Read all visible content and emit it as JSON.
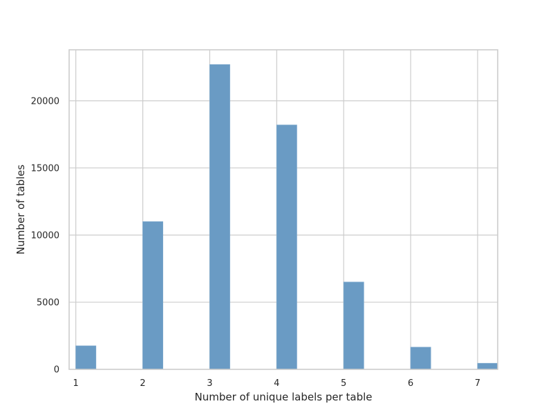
{
  "chart_data": {
    "type": "bar",
    "categories": [
      "1",
      "2",
      "3",
      "4",
      "5",
      "6",
      "7"
    ],
    "x": [
      1,
      2,
      3,
      4,
      5,
      6,
      7
    ],
    "values": [
      1750,
      11000,
      22700,
      18200,
      6500,
      1650,
      450
    ],
    "title": "",
    "xlabel": "Number of unique labels per table",
    "ylabel": "Number of tables",
    "xlim": [
      0.9,
      7.3
    ],
    "ylim": [
      0,
      23800
    ],
    "yticks": [
      0,
      5000,
      10000,
      15000,
      20000
    ],
    "ytick_labels": [
      "0",
      "5000",
      "10000",
      "15000",
      "20000"
    ],
    "xtick_labels": [
      "1",
      "2",
      "3",
      "4",
      "5",
      "6",
      "7"
    ],
    "grid": true,
    "bar_color": "#6a9bc4",
    "bar_edge_color": "#7aa7cc",
    "grid_color": "#cccccc"
  }
}
